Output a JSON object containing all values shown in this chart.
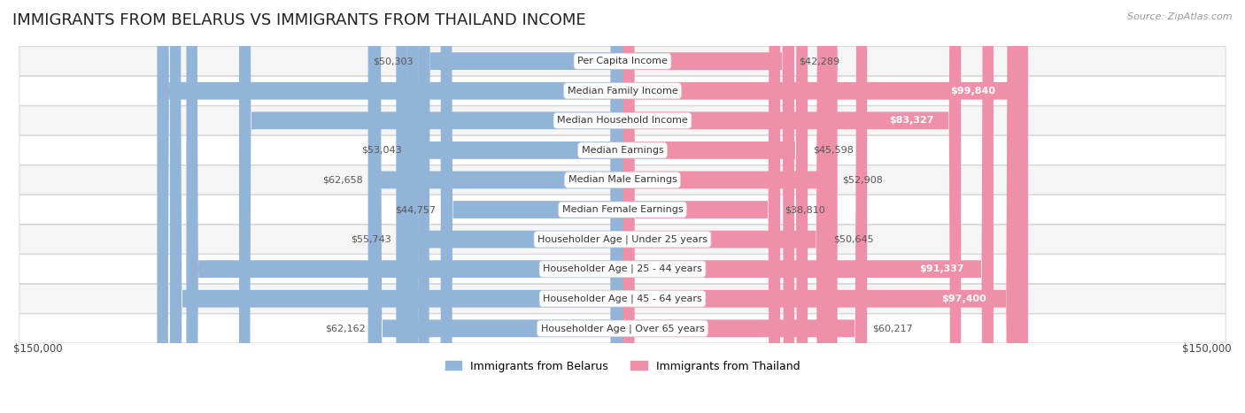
{
  "title": "IMMIGRANTS FROM BELARUS VS IMMIGRANTS FROM THAILAND INCOME",
  "source": "Source: ZipAtlas.com",
  "categories": [
    "Per Capita Income",
    "Median Family Income",
    "Median Household Income",
    "Median Earnings",
    "Median Male Earnings",
    "Median Female Earnings",
    "Householder Age | Under 25 years",
    "Householder Age | 25 - 44 years",
    "Householder Age | 45 - 64 years",
    "Householder Age | Over 65 years"
  ],
  "belarus_values": [
    50303,
    114586,
    94399,
    53043,
    62658,
    44757,
    55743,
    107393,
    111430,
    62162
  ],
  "thailand_values": [
    42289,
    99840,
    83327,
    45598,
    52908,
    38810,
    50645,
    91337,
    97400,
    60217
  ],
  "belarus_color": "#92b4d8",
  "thailand_color": "#f08faa",
  "belarus_white_text_threshold": 75000,
  "thailand_white_text_threshold": 75000,
  "max_value": 150000,
  "legend_belarus": "Immigrants from Belarus",
  "legend_thailand": "Immigrants from Thailand",
  "x_label_left": "$150,000",
  "x_label_right": "$150,000",
  "row_bg_even": "#f5f5f5",
  "row_bg_odd": "#ffffff",
  "row_border_color": "#cccccc",
  "bar_height": 0.58,
  "title_fontsize": 13,
  "label_fontsize": 8,
  "category_fontsize": 8,
  "legend_fontsize": 9,
  "source_fontsize": 8,
  "category_box_color": "#ffffff",
  "category_text_color": "#333333",
  "outside_label_color": "#555555",
  "white_label_color": "#ffffff"
}
